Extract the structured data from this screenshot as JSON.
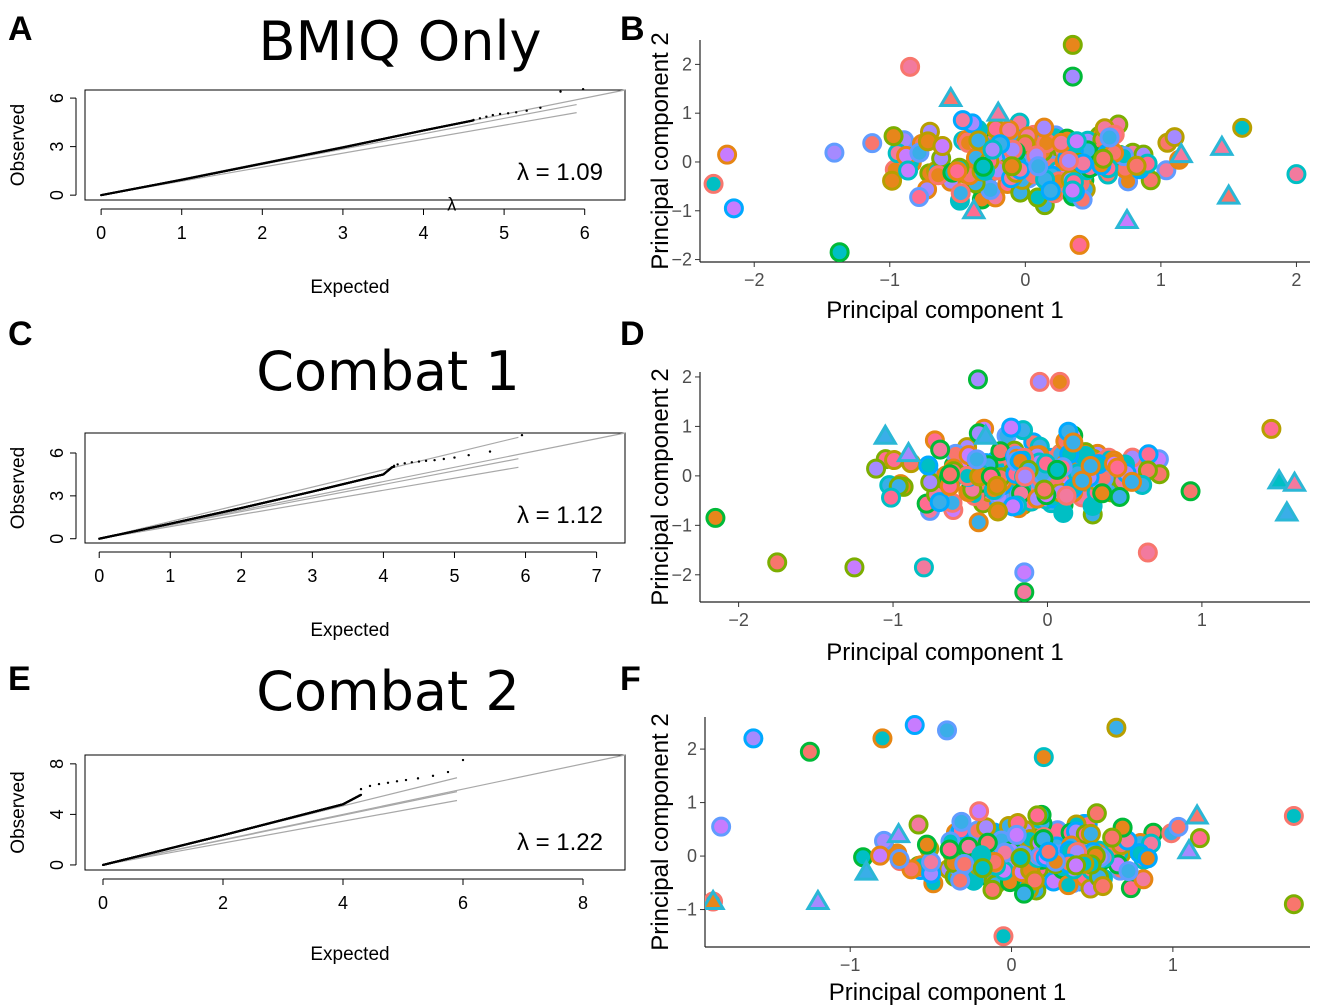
{
  "panel_letters": [
    "A",
    "B",
    "C",
    "D",
    "E",
    "F"
  ],
  "titles": [
    "BMIQ Only",
    "Combat 1",
    "Combat 2"
  ],
  "chart_data": [
    {
      "panel": "A",
      "type": "scatter",
      "title": "BMIQ Only",
      "xlabel": "Expected",
      "ylabel": "Observed",
      "xticks": [
        0,
        1,
        2,
        3,
        4,
        5,
        6
      ],
      "yticks": [
        0,
        3,
        6
      ],
      "xlim": [
        -0.2,
        6.5
      ],
      "ylim": [
        -0.3,
        6.5
      ],
      "lambda_text": "λ = 1.09",
      "stray_label": "λ",
      "stray_label_pos": [
        4.35,
        -0.95
      ],
      "reference_lines": [
        {
          "x": [
            0,
            6.5
          ],
          "y": [
            0,
            6.5
          ]
        },
        {
          "x": [
            0,
            5.9
          ],
          "y": [
            0,
            5.1
          ]
        },
        {
          "x": [
            0,
            5.9
          ],
          "y": [
            0,
            5.6
          ]
        }
      ],
      "observed_points": [
        [
          0,
          0
        ],
        [
          1,
          0.95
        ],
        [
          2,
          1.95
        ],
        [
          3,
          2.95
        ],
        [
          4,
          4.0
        ],
        [
          4.6,
          4.6
        ],
        [
          4.85,
          5.0
        ],
        [
          5.1,
          5.3
        ],
        [
          5.7,
          6.4
        ],
        [
          6.0,
          6.5
        ]
      ],
      "tail_points": [
        [
          4.62,
          4.65
        ],
        [
          4.7,
          4.75
        ],
        [
          4.78,
          4.85
        ],
        [
          4.86,
          4.95
        ],
        [
          4.95,
          5.02
        ],
        [
          5.05,
          5.06
        ],
        [
          5.15,
          5.12
        ],
        [
          5.28,
          5.22
        ],
        [
          5.45,
          5.4
        ],
        [
          5.7,
          6.4
        ],
        [
          5.98,
          6.55
        ]
      ],
      "n_points": 1000
    },
    {
      "panel": "C",
      "type": "scatter",
      "title": "Combat 1",
      "xlabel": "Expected",
      "ylabel": "Observed",
      "xticks": [
        0,
        1,
        2,
        3,
        4,
        5,
        6,
        7
      ],
      "yticks": [
        0,
        3,
        6
      ],
      "xlim": [
        -0.2,
        7.4
      ],
      "ylim": [
        -0.3,
        7.4
      ],
      "lambda_text": "λ = 1.12",
      "reference_lines": [
        {
          "x": [
            0,
            7.4
          ],
          "y": [
            0,
            7.4
          ]
        },
        {
          "x": [
            0,
            5.9
          ],
          "y": [
            0,
            5.0
          ]
        },
        {
          "x": [
            0,
            5.9
          ],
          "y": [
            0,
            5.6
          ]
        },
        {
          "x": [
            0,
            5.9
          ],
          "y": [
            0,
            7.1
          ]
        }
      ],
      "observed_points": [
        [
          0,
          0
        ],
        [
          1,
          1.05
        ],
        [
          2,
          2.15
        ],
        [
          3,
          3.3
        ],
        [
          4,
          4.5
        ],
        [
          4.12,
          5.0
        ],
        [
          4.4,
          5.4
        ],
        [
          5.0,
          5.7
        ],
        [
          5.9,
          7.2
        ]
      ],
      "tail_points": [
        [
          4.15,
          5.1
        ],
        [
          4.2,
          5.2
        ],
        [
          4.3,
          5.28
        ],
        [
          4.4,
          5.35
        ],
        [
          4.5,
          5.4
        ],
        [
          4.6,
          5.45
        ],
        [
          4.72,
          5.5
        ],
        [
          4.85,
          5.58
        ],
        [
          5.0,
          5.68
        ],
        [
          5.2,
          5.85
        ],
        [
          5.5,
          6.1
        ],
        [
          5.95,
          7.25
        ]
      ],
      "n_points": 1000
    },
    {
      "panel": "E",
      "type": "scatter",
      "title": "Combat 2",
      "xlabel": "Expected",
      "ylabel": "Observed",
      "xticks": [
        0,
        2,
        4,
        6,
        8
      ],
      "yticks": [
        0,
        4,
        8
      ],
      "xlim": [
        -0.3,
        8.7
      ],
      "ylim": [
        -0.4,
        8.7
      ],
      "lambda_text": "λ = 1.22",
      "reference_lines": [
        {
          "x": [
            0,
            8.7
          ],
          "y": [
            0,
            8.7
          ]
        },
        {
          "x": [
            0,
            5.9
          ],
          "y": [
            0,
            5.1
          ]
        },
        {
          "x": [
            0,
            5.9
          ],
          "y": [
            0,
            5.8
          ]
        },
        {
          "x": [
            0,
            5.9
          ],
          "y": [
            0,
            6.9
          ]
        }
      ],
      "observed_points": [
        [
          0,
          0
        ],
        [
          2,
          2.35
        ],
        [
          4,
          4.8
        ],
        [
          4.6,
          6.3
        ],
        [
          5.2,
          7.2
        ],
        [
          6.0,
          8.3
        ]
      ],
      "tail_points": [
        [
          4.3,
          6.0
        ],
        [
          4.45,
          6.25
        ],
        [
          4.6,
          6.4
        ],
        [
          4.75,
          6.5
        ],
        [
          4.9,
          6.62
        ],
        [
          5.05,
          6.72
        ],
        [
          5.25,
          6.85
        ],
        [
          5.5,
          7.05
        ],
        [
          5.75,
          7.35
        ],
        [
          6.0,
          8.3
        ]
      ],
      "n_points": 1000
    },
    {
      "panel": "B",
      "type": "scatter",
      "xlabel": "Principal component 1",
      "ylabel": "Principal component 2",
      "xticks": [
        -2,
        -1,
        0,
        1,
        2
      ],
      "yticks": [
        -2,
        -1,
        0,
        1,
        2
      ],
      "xlim": [
        -2.4,
        2.1
      ],
      "ylim": [
        -2.05,
        2.5
      ],
      "seed": 11,
      "n_points": 230,
      "highlights": [
        [
          0.35,
          2.4
        ],
        [
          -0.85,
          1.95
        ],
        [
          1.6,
          0.7
        ],
        [
          2.0,
          -0.25
        ],
        [
          -2.2,
          0.15
        ],
        [
          -2.3,
          -0.45
        ],
        [
          -1.37,
          -1.85
        ],
        [
          0.4,
          -1.7
        ],
        [
          0.35,
          1.75
        ],
        [
          -2.15,
          -0.95
        ]
      ],
      "triangles": [
        [
          -0.55,
          1.3
        ],
        [
          -0.2,
          1.0
        ],
        [
          1.15,
          0.15
        ],
        [
          1.45,
          0.3
        ],
        [
          1.5,
          -0.7
        ],
        [
          -0.38,
          -1.0
        ],
        [
          0.75,
          -1.2
        ]
      ]
    },
    {
      "panel": "D",
      "type": "scatter",
      "xlabel": "Principal component 1",
      "ylabel": "Principal component 2",
      "xticks": [
        -2,
        -1,
        0,
        1
      ],
      "yticks": [
        -2,
        -1,
        0,
        1,
        2
      ],
      "xlim": [
        -2.25,
        1.7
      ],
      "ylim": [
        -2.55,
        2.1
      ],
      "seed": 23,
      "n_points": 230,
      "highlights": [
        [
          -0.45,
          1.95
        ],
        [
          -0.05,
          1.9
        ],
        [
          0.08,
          1.9
        ],
        [
          1.45,
          0.95
        ],
        [
          -2.15,
          -0.85
        ],
        [
          -1.75,
          -1.75
        ],
        [
          -0.15,
          -2.35
        ],
        [
          -0.15,
          -1.95
        ],
        [
          -0.8,
          -1.85
        ],
        [
          -1.25,
          -1.85
        ],
        [
          0.65,
          -1.55
        ]
      ],
      "triangles": [
        [
          -1.05,
          0.8
        ],
        [
          -0.4,
          0.8
        ],
        [
          1.5,
          -0.1
        ],
        [
          1.6,
          -0.15
        ],
        [
          1.55,
          -0.75
        ],
        [
          -0.9,
          0.45
        ]
      ]
    },
    {
      "panel": "F",
      "type": "scatter",
      "xlabel": "Principal component 1",
      "ylabel": "Principal component 2",
      "xticks": [
        -1,
        0,
        1
      ],
      "yticks": [
        -1,
        0,
        1,
        2
      ],
      "xlim": [
        -1.9,
        1.85
      ],
      "ylim": [
        -1.7,
        2.6
      ],
      "seed": 37,
      "n_points": 230,
      "highlights": [
        [
          -1.6,
          2.2
        ],
        [
          -1.25,
          1.95
        ],
        [
          -0.6,
          2.45
        ],
        [
          -0.4,
          2.35
        ],
        [
          0.65,
          2.4
        ],
        [
          0.2,
          1.85
        ],
        [
          -0.8,
          2.2
        ],
        [
          -1.85,
          -0.85
        ],
        [
          1.75,
          -0.9
        ],
        [
          -0.05,
          -1.5
        ],
        [
          -1.8,
          0.55
        ],
        [
          1.75,
          0.75
        ]
      ],
      "triangles": [
        [
          -1.85,
          -0.85
        ],
        [
          -1.2,
          -0.85
        ],
        [
          -0.7,
          0.4
        ],
        [
          1.15,
          0.75
        ],
        [
          1.1,
          0.1
        ],
        [
          -0.9,
          -0.3
        ]
      ]
    }
  ],
  "pc_colors": {
    "fill": [
      "#f8766d",
      "#c77cff",
      "#00bfc4",
      "#f27a9e",
      "#e7861b",
      "#3aaee8",
      "#ff6c91",
      "#a58aff"
    ],
    "ring": [
      "#7cae00",
      "#00ba38",
      "#00bfc4",
      "#619cff",
      "#b79f00",
      "#e68613",
      "#f8766d",
      "#00a9ff"
    ]
  },
  "qq_colors": {
    "points": "#000000",
    "reference": "#a8a8a8",
    "frame": "#000000"
  }
}
